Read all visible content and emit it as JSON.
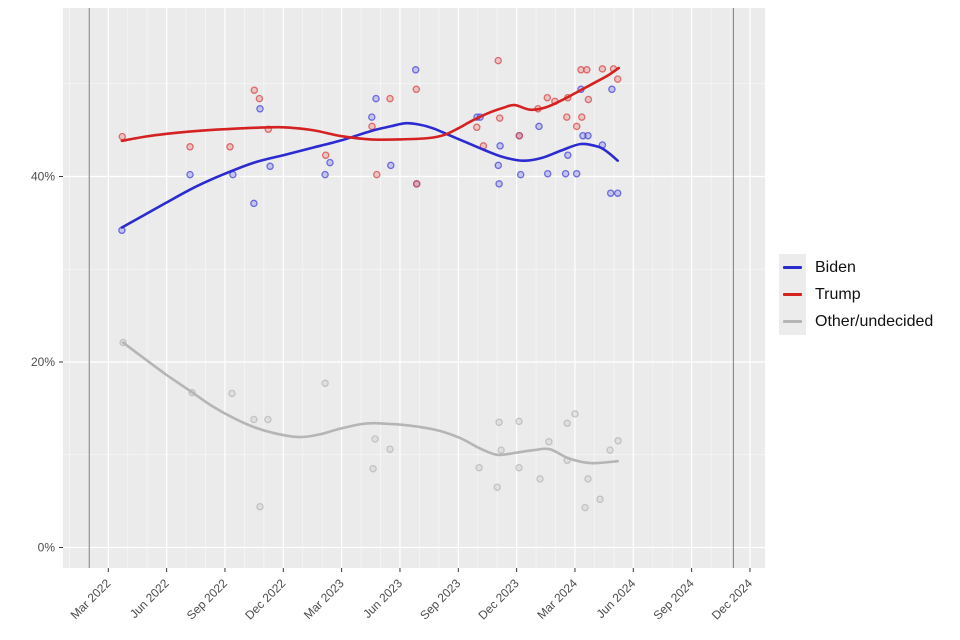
{
  "chart_data": {
    "type": "scatter",
    "title": "",
    "xlabel": "",
    "ylabel": "",
    "x_axis": {
      "unit": "months_since_jan_2022",
      "ticks": [
        {
          "m": 2,
          "label": "Mar 2022"
        },
        {
          "m": 5,
          "label": "Jun 2022"
        },
        {
          "m": 8,
          "label": "Sep 2022"
        },
        {
          "m": 11,
          "label": "Dec 2022"
        },
        {
          "m": 14,
          "label": "Mar 2023"
        },
        {
          "m": 17,
          "label": "Jun 2023"
        },
        {
          "m": 20,
          "label": "Sep 2023"
        },
        {
          "m": 23,
          "label": "Dec 2023"
        },
        {
          "m": 26,
          "label": "Mar 2024"
        },
        {
          "m": 29,
          "label": "Jun 2024"
        },
        {
          "m": 32,
          "label": "Sep 2024"
        },
        {
          "m": 35,
          "label": "Dec 2024"
        }
      ],
      "minor_every_month": true,
      "range_m": [
        -0.33,
        35.78
      ]
    },
    "y_axis": {
      "ticks": [
        {
          "v": 0,
          "label": "0%"
        },
        {
          "v": 20,
          "label": "20%"
        },
        {
          "v": 40,
          "label": "40%"
        }
      ],
      "minor": [
        10,
        30,
        50
      ],
      "range": [
        -2.2,
        58.2
      ]
    },
    "vlines": {
      "color": "#8a8a8a",
      "positions_m": [
        1.02,
        34.15
      ]
    },
    "grid": {
      "panel_bg": "#ebebeb",
      "major_color": "#ffffff",
      "minor_color": "#f7f7f7"
    },
    "legend_position": "right",
    "series": [
      {
        "name": "Biden",
        "line_color": "#2b2bd0",
        "point_stroke": "rgba(70,70,215,0.75)",
        "point_fill": "rgba(135,135,235,0.40)",
        "points": [
          [
            2.7,
            34.2
          ],
          [
            6.2,
            40.2
          ],
          [
            8.41,
            40.2
          ],
          [
            9.49,
            37.1
          ],
          [
            9.8,
            47.3
          ],
          [
            10.32,
            41.1
          ],
          [
            13.15,
            40.2
          ],
          [
            13.4,
            41.5
          ],
          [
            15.55,
            46.4
          ],
          [
            15.77,
            48.4
          ],
          [
            16.53,
            41.2
          ],
          [
            17.81,
            51.5
          ],
          [
            17.86,
            39.2
          ],
          [
            20.96,
            46.4
          ],
          [
            21.12,
            46.4
          ],
          [
            22.06,
            41.2
          ],
          [
            22.1,
            39.2
          ],
          [
            22.15,
            43.3
          ],
          [
            23.14,
            44.4
          ],
          [
            23.21,
            40.2
          ],
          [
            24.15,
            45.4
          ],
          [
            24.6,
            40.3
          ],
          [
            25.52,
            40.3
          ],
          [
            25.63,
            42.3
          ],
          [
            26.09,
            40.3
          ],
          [
            26.31,
            49.4
          ],
          [
            26.41,
            44.4
          ],
          [
            26.67,
            44.4
          ],
          [
            27.41,
            43.4
          ],
          [
            27.84,
            38.2
          ],
          [
            27.9,
            49.4
          ],
          [
            28.2,
            38.2
          ]
        ],
        "smooth": [
          [
            2.7,
            34.5
          ],
          [
            3.9,
            35.9
          ],
          [
            5.0,
            37.2
          ],
          [
            6.5,
            38.9
          ],
          [
            8.0,
            40.3
          ],
          [
            9.5,
            41.5
          ],
          [
            11.0,
            42.3
          ],
          [
            12.5,
            43.1
          ],
          [
            14.0,
            43.9
          ],
          [
            15.5,
            44.9
          ],
          [
            16.5,
            45.4
          ],
          [
            17.3,
            45.75
          ],
          [
            18.0,
            45.6
          ],
          [
            18.7,
            45.2
          ],
          [
            19.6,
            44.4
          ],
          [
            20.5,
            43.6
          ],
          [
            21.4,
            42.8
          ],
          [
            22.3,
            42.1
          ],
          [
            23.3,
            41.7
          ],
          [
            24.3,
            42.0
          ],
          [
            25.3,
            42.8
          ],
          [
            26.3,
            43.5
          ],
          [
            27.2,
            43.2
          ],
          [
            27.7,
            42.6
          ],
          [
            28.2,
            41.7
          ]
        ]
      },
      {
        "name": "Trump",
        "line_color": "#d42222",
        "point_stroke": "rgba(215,70,70,0.75)",
        "point_fill": "rgba(235,135,135,0.40)",
        "points": [
          [
            2.72,
            44.3
          ],
          [
            6.2,
            43.2
          ],
          [
            8.26,
            43.2
          ],
          [
            9.51,
            49.3
          ],
          [
            9.77,
            48.4
          ],
          [
            10.23,
            45.1
          ],
          [
            13.18,
            42.3
          ],
          [
            15.56,
            45.4
          ],
          [
            15.81,
            40.2
          ],
          [
            16.49,
            48.4
          ],
          [
            17.84,
            49.4
          ],
          [
            17.86,
            39.2
          ],
          [
            20.95,
            45.3
          ],
          [
            21.29,
            43.3
          ],
          [
            22.05,
            52.5
          ],
          [
            22.13,
            46.3
          ],
          [
            23.14,
            44.4
          ],
          [
            24.1,
            47.3
          ],
          [
            24.58,
            48.5
          ],
          [
            24.97,
            48.1
          ],
          [
            25.58,
            46.4
          ],
          [
            25.63,
            48.5
          ],
          [
            26.09,
            45.4
          ],
          [
            26.31,
            51.5
          ],
          [
            26.35,
            46.4
          ],
          [
            26.61,
            51.5
          ],
          [
            26.69,
            48.3
          ],
          [
            27.41,
            51.6
          ],
          [
            27.98,
            51.6
          ],
          [
            28.2,
            50.5
          ]
        ],
        "smooth": [
          [
            2.7,
            43.85
          ],
          [
            3.9,
            44.3
          ],
          [
            5.0,
            44.6
          ],
          [
            6.5,
            44.9
          ],
          [
            8.0,
            45.1
          ],
          [
            9.5,
            45.25
          ],
          [
            11.0,
            45.3
          ],
          [
            12.5,
            45.0
          ],
          [
            14.0,
            44.35
          ],
          [
            15.5,
            44.0
          ],
          [
            17.0,
            44.0
          ],
          [
            18.5,
            44.15
          ],
          [
            19.3,
            44.5
          ],
          [
            20.0,
            45.2
          ],
          [
            20.7,
            46.0
          ],
          [
            21.5,
            46.8
          ],
          [
            22.3,
            47.4
          ],
          [
            22.9,
            47.7
          ],
          [
            23.7,
            47.2
          ],
          [
            24.5,
            47.45
          ],
          [
            25.4,
            48.3
          ],
          [
            26.2,
            49.2
          ],
          [
            27.0,
            50.1
          ],
          [
            27.7,
            50.9
          ],
          [
            28.25,
            51.7
          ]
        ]
      },
      {
        "name": "Other/undecided",
        "line_color": "#b5b5b5",
        "point_stroke": "rgba(165,165,165,0.55)",
        "point_fill": "rgba(200,200,200,0.35)",
        "points": [
          [
            2.76,
            22.1
          ],
          [
            6.31,
            16.7
          ],
          [
            8.36,
            16.6
          ],
          [
            9.49,
            13.8
          ],
          [
            9.8,
            4.4
          ],
          [
            10.21,
            13.8
          ],
          [
            13.15,
            17.7
          ],
          [
            15.62,
            8.5
          ],
          [
            15.72,
            11.7
          ],
          [
            16.49,
            10.6
          ],
          [
            21.07,
            8.6
          ],
          [
            22.0,
            6.5
          ],
          [
            22.1,
            13.5
          ],
          [
            22.2,
            10.5
          ],
          [
            23.12,
            13.6
          ],
          [
            23.12,
            8.6
          ],
          [
            24.2,
            7.4
          ],
          [
            24.66,
            11.4
          ],
          [
            25.6,
            13.4
          ],
          [
            25.6,
            9.4
          ],
          [
            26.0,
            14.4
          ],
          [
            26.52,
            4.3
          ],
          [
            26.67,
            7.4
          ],
          [
            27.29,
            5.2
          ],
          [
            27.81,
            10.5
          ],
          [
            28.22,
            11.5
          ]
        ],
        "smooth": [
          [
            2.76,
            22.1
          ],
          [
            3.9,
            20.3
          ],
          [
            5.0,
            18.6
          ],
          [
            6.2,
            16.9
          ],
          [
            7.3,
            15.3
          ],
          [
            8.5,
            13.9
          ],
          [
            9.6,
            12.9
          ],
          [
            10.8,
            12.2
          ],
          [
            11.9,
            11.9
          ],
          [
            12.9,
            12.2
          ],
          [
            13.9,
            12.8
          ],
          [
            15.0,
            13.3
          ],
          [
            15.7,
            13.4
          ],
          [
            17.0,
            13.25
          ],
          [
            18.0,
            13.0
          ],
          [
            19.0,
            12.6
          ],
          [
            20.1,
            11.8
          ],
          [
            21.1,
            10.7
          ],
          [
            22.0,
            10.0
          ],
          [
            22.9,
            10.2
          ],
          [
            23.9,
            10.5
          ],
          [
            24.7,
            10.6
          ],
          [
            25.7,
            9.6
          ],
          [
            26.8,
            9.1
          ],
          [
            28.2,
            9.3
          ]
        ]
      }
    ]
  },
  "legend": {
    "items": [
      {
        "label": "Biden",
        "color": "#2b2bd0"
      },
      {
        "label": "Trump",
        "color": "#d42222"
      },
      {
        "label": "Other/undecided",
        "color": "#b5b5b5"
      }
    ]
  },
  "axis_text_color": "#4d4d4d"
}
